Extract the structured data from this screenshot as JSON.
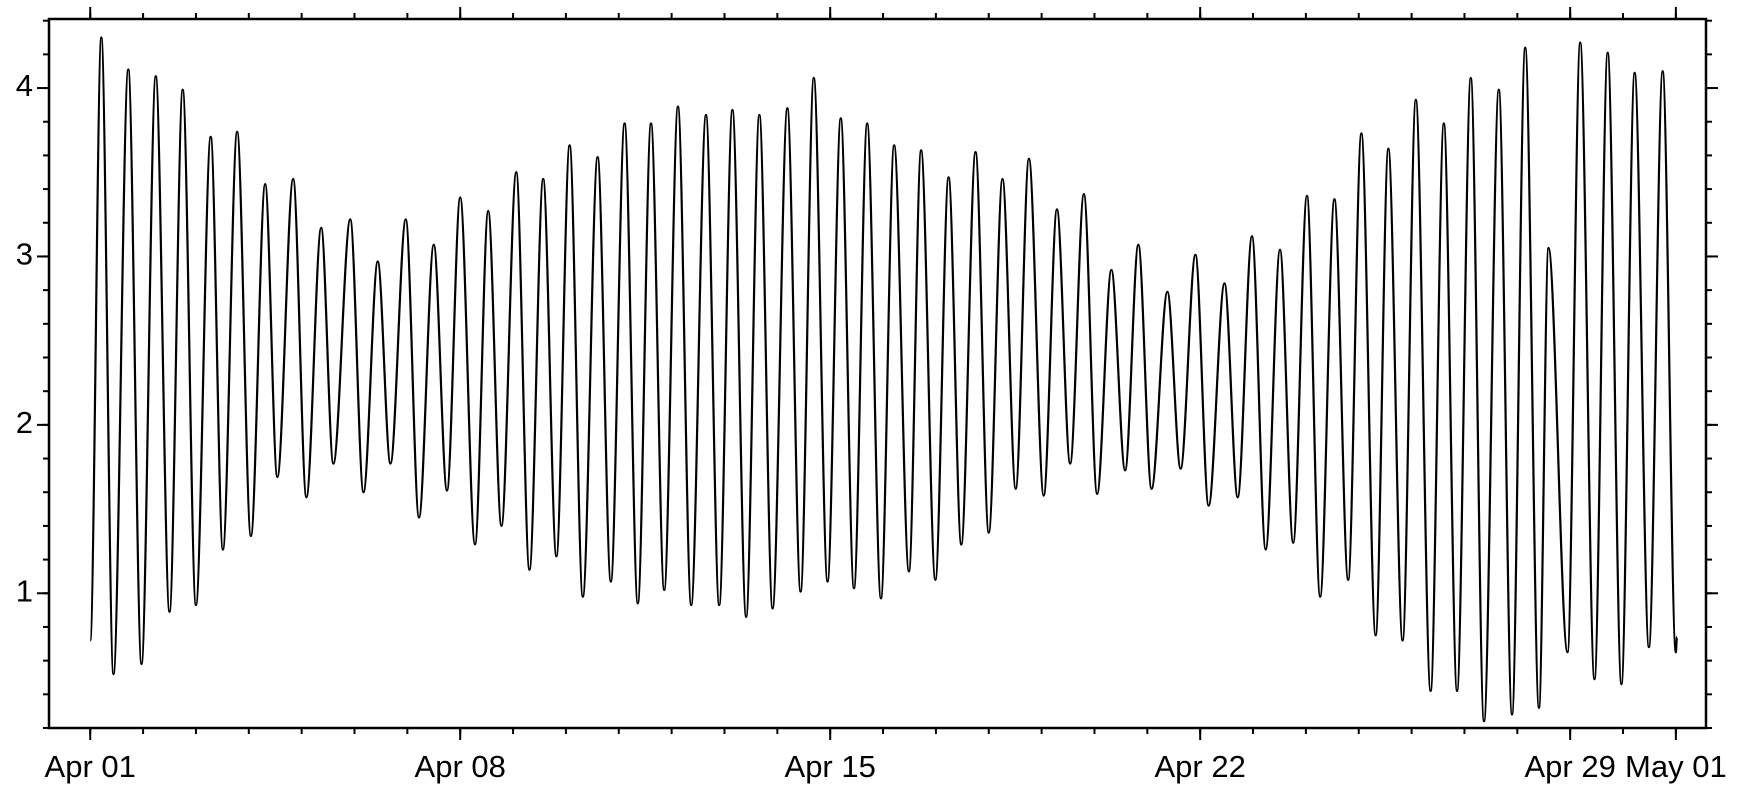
{
  "chart_data": {
    "type": "line",
    "x": [
      0,
      0.21,
      0.44,
      0.72,
      0.97,
      1.24,
      1.5,
      1.75,
      2.0,
      2.28,
      2.51,
      2.78,
      3.04,
      3.31,
      3.54,
      3.84,
      4.09,
      4.37,
      4.6,
      4.92,
      5.17,
      5.44,
      5.68,
      5.97,
      6.22,
      6.5,
      6.75,
      7.0,
      7.28,
      7.53,
      7.78,
      8.06,
      8.31,
      8.57,
      8.82,
      9.07,
      9.32,
      9.6,
      9.85,
      10.11,
      10.36,
      10.61,
      10.86,
      11.12,
      11.37,
      11.65,
      11.9,
      12.15,
      12.41,
      12.66,
      12.91,
      13.19,
      13.44,
      13.69,
      13.95,
      14.2,
      14.45,
      14.7,
      14.96,
      15.21,
      15.49,
      15.72,
      15.99,
      16.24,
      16.48,
      16.75,
      17.0,
      17.26,
      17.51,
      17.76,
      18.04,
      18.29,
      18.54,
      18.8,
      19.05,
      19.32,
      19.58,
      19.83,
      20.08,
      20.38,
      20.63,
      20.91,
      21.16,
      21.46,
      21.71,
      21.98,
      22.24,
      22.51,
      22.76,
      23.02,
      23.27,
      23.54,
      23.8,
      24.05,
      24.32,
      24.56,
      24.83,
      25.08,
      25.36,
      25.61,
      25.86,
      26.12,
      26.37,
      26.65,
      26.9,
      27.15,
      27.41,
      27.59,
      27.95,
      28.19,
      28.46,
      28.71,
      28.97,
      29.22,
      29.49,
      29.75,
      30.0,
      30.02
    ],
    "series": [
      {
        "color": "#000000",
        "values": [
          0.72,
          4.3,
          0.52,
          4.11,
          0.58,
          4.07,
          0.89,
          3.99,
          0.93,
          3.71,
          1.26,
          3.74,
          1.34,
          3.43,
          1.69,
          3.46,
          1.57,
          3.17,
          1.77,
          3.22,
          1.6,
          2.97,
          1.77,
          3.22,
          1.45,
          3.07,
          1.61,
          3.35,
          1.29,
          3.27,
          1.4,
          3.5,
          1.14,
          3.46,
          1.22,
          3.66,
          0.98,
          3.59,
          1.07,
          3.79,
          0.94,
          3.79,
          1.02,
          3.89,
          0.93,
          3.84,
          0.93,
          3.87,
          0.86,
          3.84,
          0.91,
          3.88,
          1.01,
          4.06,
          1.07,
          3.82,
          1.03,
          3.79,
          0.97,
          3.66,
          1.13,
          3.63,
          1.08,
          3.47,
          1.29,
          3.62,
          1.36,
          3.46,
          1.62,
          3.58,
          1.58,
          3.28,
          1.77,
          3.37,
          1.59,
          2.92,
          1.73,
          3.07,
          1.62,
          2.79,
          1.74,
          3.01,
          1.52,
          2.84,
          1.57,
          3.12,
          1.26,
          3.04,
          1.3,
          3.36,
          0.98,
          3.34,
          1.08,
          3.73,
          0.75,
          3.64,
          0.72,
          3.93,
          0.42,
          3.79,
          0.42,
          4.06,
          0.24,
          3.99,
          0.28,
          4.24,
          0.32,
          3.05,
          0.65,
          4.27,
          0.49,
          4.21,
          0.46,
          4.09,
          0.68,
          4.1,
          0.65,
          0.74
        ]
      }
    ],
    "xlim": [
      -0.78,
      30.57
    ],
    "ylim": [
      0.2,
      4.41
    ],
    "xticks": [
      {
        "value": 0,
        "label": "Apr 01"
      },
      {
        "value": 7,
        "label": "Apr 08"
      },
      {
        "value": 14,
        "label": "Apr 15"
      },
      {
        "value": 21,
        "label": "Apr 22"
      },
      {
        "value": 28,
        "label": "Apr 29"
      },
      {
        "value": 30,
        "label": "May 01"
      }
    ],
    "yticks": [
      1,
      2,
      3,
      4
    ],
    "x_minor_step": 1,
    "y_minor_step": 0.2
  }
}
